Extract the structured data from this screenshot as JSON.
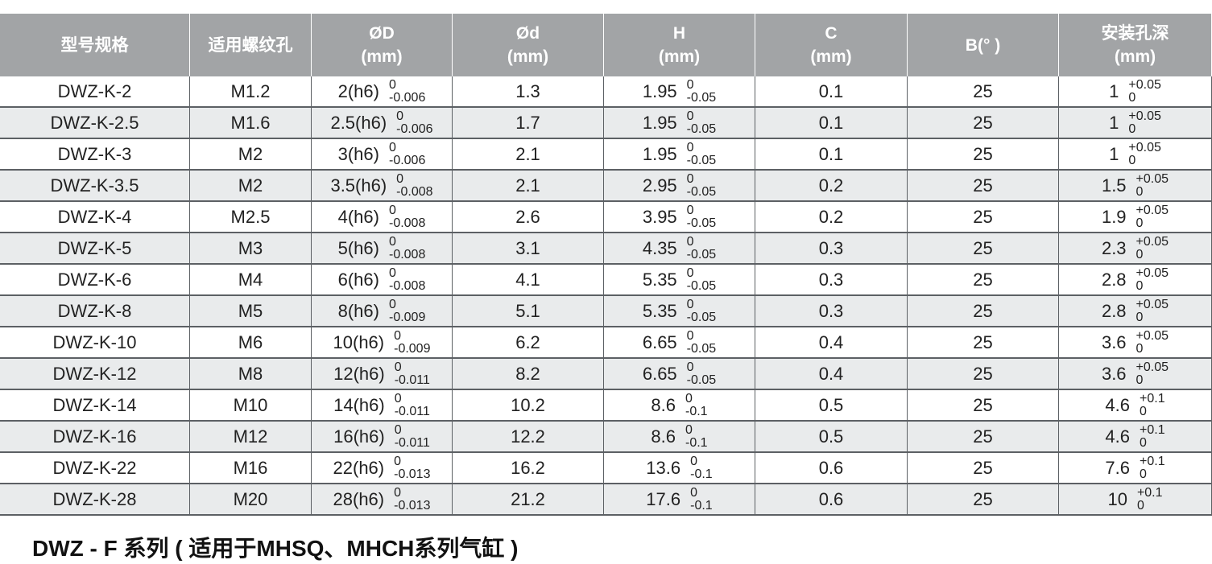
{
  "table": {
    "headers": [
      [
        "型号规格"
      ],
      [
        "适用螺纹孔"
      ],
      [
        "ØD",
        "(mm)"
      ],
      [
        "Ød",
        "(mm)"
      ],
      [
        "H",
        "(mm)"
      ],
      [
        "C",
        "(mm)"
      ],
      [
        "B(° )"
      ],
      [
        "安装孔深",
        "(mm)"
      ]
    ],
    "rows": [
      [
        "DWZ-K-2",
        "M1.2",
        {
          "main": "2(h6)",
          "upper": "0",
          "lower": "-0.006"
        },
        "1.3",
        {
          "main": "1.95",
          "upper": "0",
          "lower": "-0.05"
        },
        "0.1",
        "25",
        {
          "main": "1",
          "upper": "+0.05",
          "lower": "0"
        }
      ],
      [
        "DWZ-K-2.5",
        "M1.6",
        {
          "main": "2.5(h6)",
          "upper": "0",
          "lower": "-0.006"
        },
        "1.7",
        {
          "main": "1.95",
          "upper": "0",
          "lower": "-0.05"
        },
        "0.1",
        "25",
        {
          "main": "1",
          "upper": "+0.05",
          "lower": "0"
        }
      ],
      [
        "DWZ-K-3",
        "M2",
        {
          "main": "3(h6)",
          "upper": "0",
          "lower": "-0.006"
        },
        "2.1",
        {
          "main": "1.95",
          "upper": "0",
          "lower": "-0.05"
        },
        "0.1",
        "25",
        {
          "main": "1",
          "upper": "+0.05",
          "lower": "0"
        }
      ],
      [
        "DWZ-K-3.5",
        "M2",
        {
          "main": "3.5(h6)",
          "upper": "0",
          "lower": "-0.008"
        },
        "2.1",
        {
          "main": "2.95",
          "upper": "0",
          "lower": "-0.05"
        },
        "0.2",
        "25",
        {
          "main": "1.5",
          "upper": "+0.05",
          "lower": "0"
        }
      ],
      [
        "DWZ-K-4",
        "M2.5",
        {
          "main": "4(h6)",
          "upper": "0",
          "lower": "-0.008"
        },
        "2.6",
        {
          "main": "3.95",
          "upper": "0",
          "lower": "-0.05"
        },
        "0.2",
        "25",
        {
          "main": "1.9",
          "upper": "+0.05",
          "lower": "0"
        }
      ],
      [
        "DWZ-K-5",
        "M3",
        {
          "main": "5(h6)",
          "upper": "0",
          "lower": "-0.008"
        },
        "3.1",
        {
          "main": "4.35",
          "upper": "0",
          "lower": "-0.05"
        },
        "0.3",
        "25",
        {
          "main": "2.3",
          "upper": "+0.05",
          "lower": "0"
        }
      ],
      [
        "DWZ-K-6",
        "M4",
        {
          "main": "6(h6)",
          "upper": "0",
          "lower": "-0.008"
        },
        "4.1",
        {
          "main": "5.35",
          "upper": "0",
          "lower": "-0.05"
        },
        "0.3",
        "25",
        {
          "main": "2.8",
          "upper": "+0.05",
          "lower": "0"
        }
      ],
      [
        "DWZ-K-8",
        "M5",
        {
          "main": "8(h6)",
          "upper": "0",
          "lower": "-0.009"
        },
        "5.1",
        {
          "main": "5.35",
          "upper": "0",
          "lower": "-0.05"
        },
        "0.3",
        "25",
        {
          "main": "2.8",
          "upper": "+0.05",
          "lower": "0"
        }
      ],
      [
        "DWZ-K-10",
        "M6",
        {
          "main": "10(h6)",
          "upper": "0",
          "lower": "-0.009"
        },
        "6.2",
        {
          "main": "6.65",
          "upper": "0",
          "lower": "-0.05"
        },
        "0.4",
        "25",
        {
          "main": "3.6",
          "upper": "+0.05",
          "lower": "0"
        }
      ],
      [
        "DWZ-K-12",
        "M8",
        {
          "main": "12(h6)",
          "upper": "0",
          "lower": "-0.011"
        },
        "8.2",
        {
          "main": "6.65",
          "upper": "0",
          "lower": "-0.05"
        },
        "0.4",
        "25",
        {
          "main": "3.6",
          "upper": "+0.05",
          "lower": "0"
        }
      ],
      [
        "DWZ-K-14",
        "M10",
        {
          "main": "14(h6)",
          "upper": "0",
          "lower": "-0.011"
        },
        "10.2",
        {
          "main": "8.6",
          "upper": "0",
          "lower": "-0.1"
        },
        "0.5",
        "25",
        {
          "main": "4.6",
          "upper": "+0.1",
          "lower": "0"
        }
      ],
      [
        "DWZ-K-16",
        "M12",
        {
          "main": "16(h6)",
          "upper": "0",
          "lower": "-0.011"
        },
        "12.2",
        {
          "main": "8.6",
          "upper": "0",
          "lower": "-0.1"
        },
        "0.5",
        "25",
        {
          "main": "4.6",
          "upper": "+0.1",
          "lower": "0"
        }
      ],
      [
        "DWZ-K-22",
        "M16",
        {
          "main": "22(h6)",
          "upper": "0",
          "lower": "-0.013"
        },
        "16.2",
        {
          "main": "13.6",
          "upper": "0",
          "lower": "-0.1"
        },
        "0.6",
        "25",
        {
          "main": "7.6",
          "upper": "+0.1",
          "lower": "0"
        }
      ],
      [
        "DWZ-K-28",
        "M20",
        {
          "main": "28(h6)",
          "upper": "0",
          "lower": "-0.013"
        },
        "21.2",
        {
          "main": "17.6",
          "upper": "0",
          "lower": "-0.1"
        },
        "0.6",
        "25",
        {
          "main": "10",
          "upper": "+0.1",
          "lower": "0"
        }
      ]
    ]
  },
  "section_title": "DWZ - F 系列 ( 适用于MHSQ、MHCH系列气缸 )"
}
